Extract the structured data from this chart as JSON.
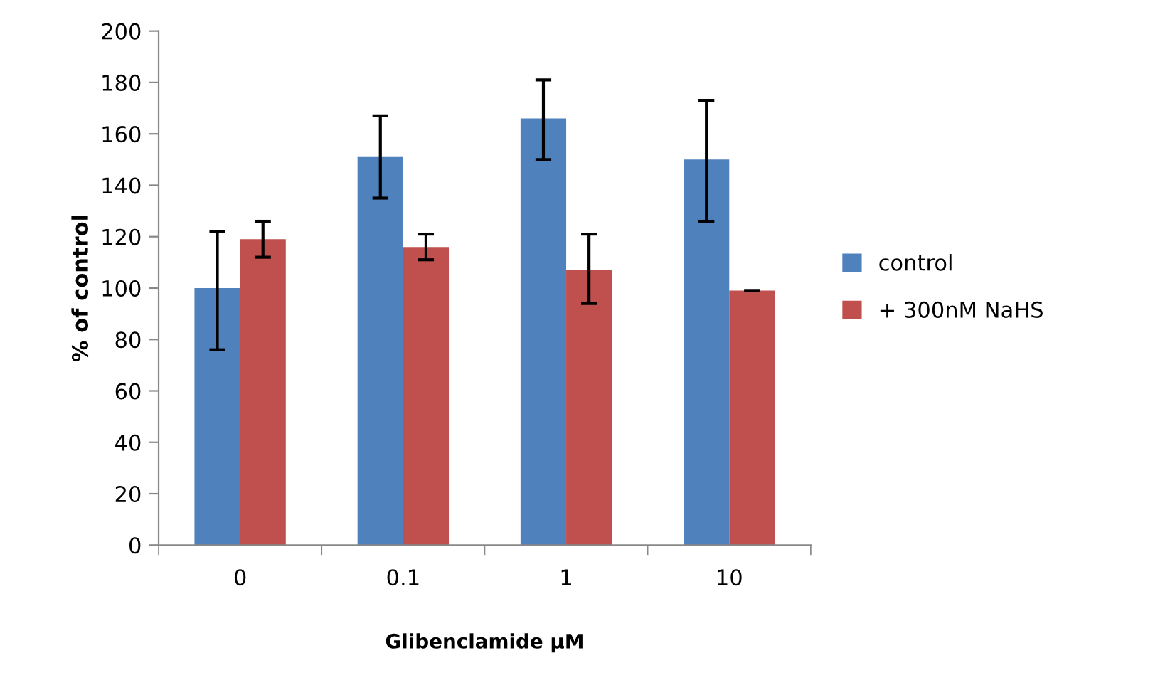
{
  "chart_data": {
    "type": "bar",
    "xlabel": "Glibenclamide μM",
    "ylabel": "% of control",
    "categories": [
      "0",
      "0.1",
      "1",
      "10"
    ],
    "series": [
      {
        "name": "control",
        "color": "#4f81bd",
        "values": [
          100,
          151,
          166,
          150
        ],
        "errors": [
          [
            76,
            122
          ],
          [
            135,
            167
          ],
          [
            150,
            181
          ],
          [
            126,
            173
          ]
        ]
      },
      {
        "name": "+ 300nM NaHS",
        "color": "#c0504d",
        "values": [
          119,
          116,
          107,
          99
        ],
        "errors": [
          [
            112,
            126
          ],
          [
            111,
            121
          ],
          [
            94,
            121
          ],
          [
            99,
            99
          ]
        ]
      }
    ],
    "ylim": [
      0,
      200
    ],
    "yticks": [
      0,
      20,
      40,
      60,
      80,
      100,
      120,
      140,
      160,
      180,
      200
    ],
    "grid": false,
    "legend": "right"
  }
}
